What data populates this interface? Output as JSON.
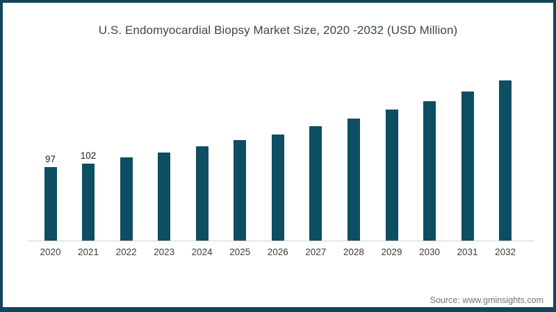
{
  "frame": {
    "border_color": "#11455c",
    "background_color": "#ffffff"
  },
  "chart_data": {
    "type": "bar",
    "title": "U.S. Endomyocardial Biopsy Market Size, 2020 -2032 (USD Million)",
    "categories": [
      "2020",
      "2021",
      "2022",
      "2023",
      "2024",
      "2025",
      "2026",
      "2027",
      "2028",
      "2029",
      "2030",
      "2031",
      "2032"
    ],
    "values": [
      97,
      102,
      110,
      117,
      125,
      133,
      141,
      152,
      162,
      174,
      185,
      198,
      212
    ],
    "data_labels": [
      "97",
      "102",
      "",
      "",
      "",
      "",
      "",
      "",
      "",
      "",
      "",
      "",
      ""
    ],
    "xlabel": "",
    "ylabel": "",
    "ylim": [
      0,
      225
    ],
    "grid": false,
    "legend": false,
    "bar_color": "#0d4e63",
    "axis_line_color": "#d2d2d2",
    "title_color": "#37474f",
    "tick_label_color": "#3d3d3d",
    "value_label_color": "#1c1c1c"
  },
  "footer": {
    "source_label": "Source: www.gminsights.com"
  }
}
